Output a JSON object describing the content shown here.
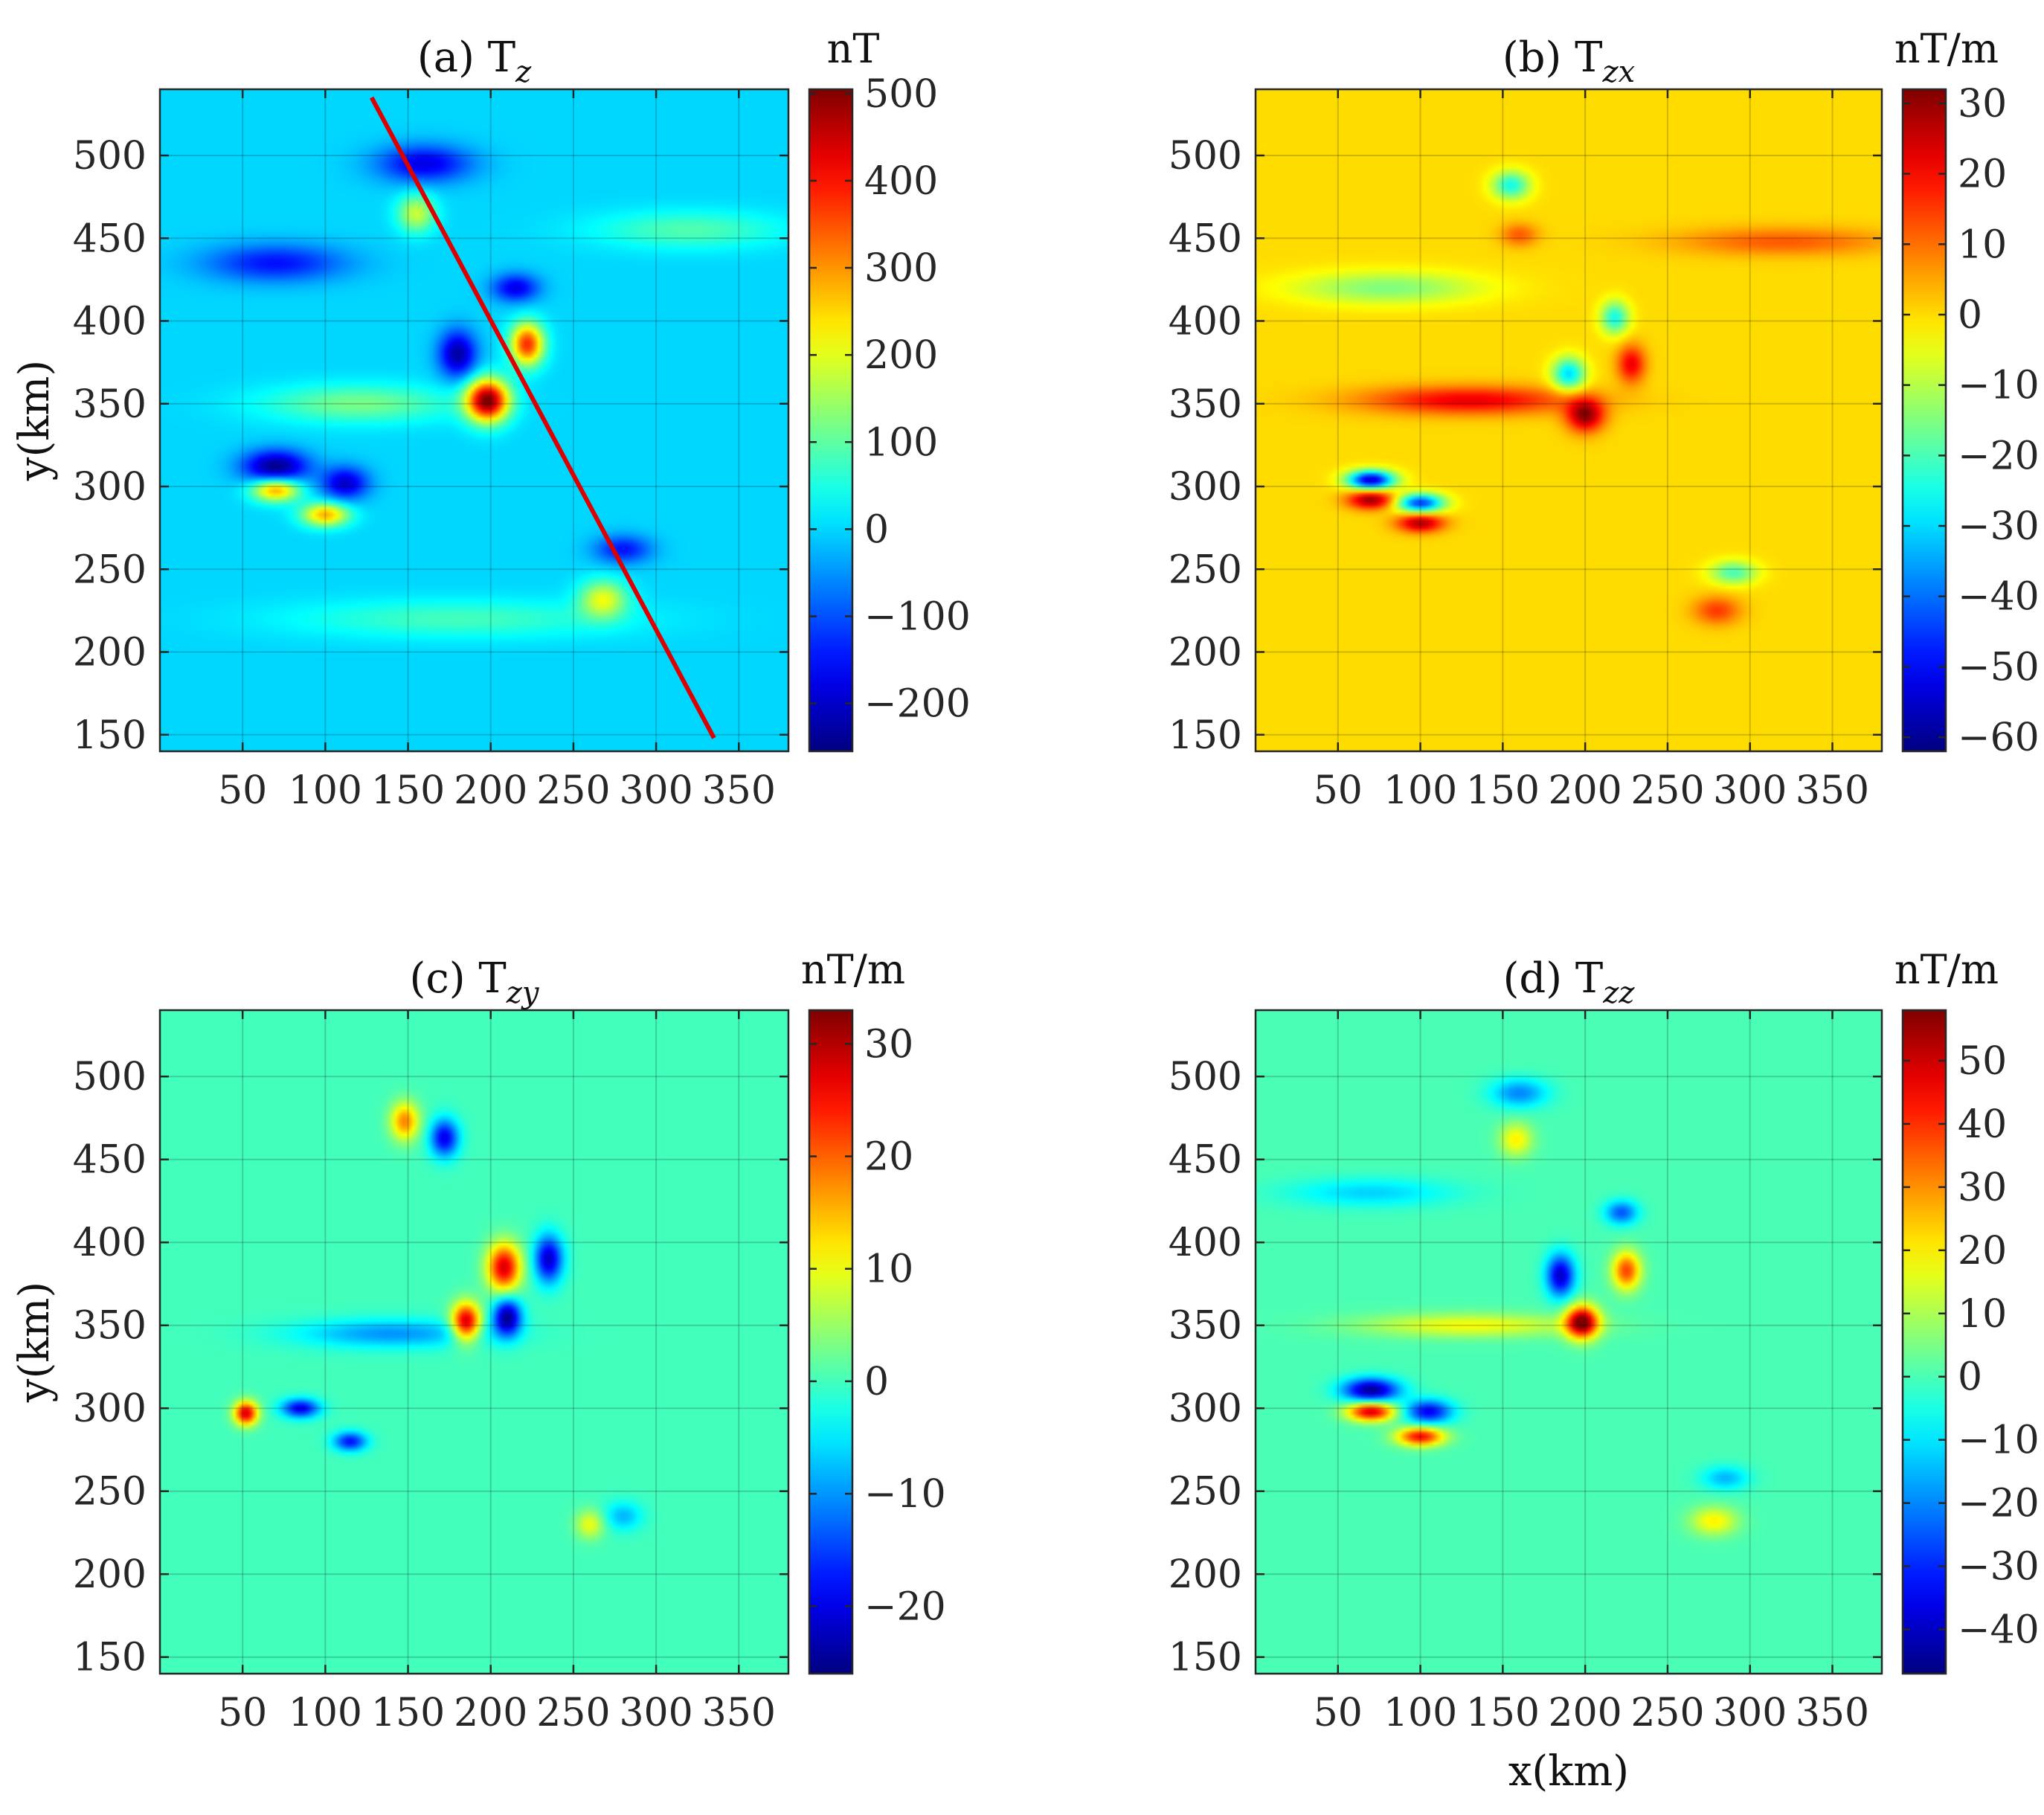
{
  "chart_data": [
    {
      "type": "heatmap",
      "title": "(a) T",
      "title_sub": "z",
      "colorbar_unit": "nT",
      "colorbar_ticks": [
        -200,
        -100,
        0,
        100,
        200,
        300,
        400,
        500
      ],
      "colorbar_range": [
        -255,
        505
      ],
      "xlim": [
        0,
        380
      ],
      "ylim": [
        140,
        540
      ],
      "x_ticks": [
        50,
        100,
        150,
        200,
        250,
        300,
        350
      ],
      "y_ticks": [
        150,
        200,
        250,
        300,
        350,
        400,
        450,
        500
      ],
      "xlabel": "",
      "ylabel": "y(km)",
      "grid": true,
      "background_value": 0,
      "anomalies": [
        {
          "x": 198,
          "y": 352,
          "sx": 9,
          "sy": 9,
          "value": 500
        },
        {
          "x": 222,
          "y": 386,
          "sx": 7,
          "sy": 9,
          "value": 380
        },
        {
          "x": 180,
          "y": 380,
          "sx": 8,
          "sy": 10,
          "value": -230
        },
        {
          "x": 70,
          "y": 298,
          "sx": 10,
          "sy": 5,
          "value": 300
        },
        {
          "x": 100,
          "y": 283,
          "sx": 10,
          "sy": 5,
          "value": 280
        },
        {
          "x": 70,
          "y": 312,
          "sx": 14,
          "sy": 7,
          "value": -250
        },
        {
          "x": 112,
          "y": 302,
          "sx": 10,
          "sy": 7,
          "value": -200
        },
        {
          "x": 268,
          "y": 232,
          "sx": 10,
          "sy": 8,
          "value": 200
        },
        {
          "x": 280,
          "y": 262,
          "sx": 12,
          "sy": 6,
          "value": -150
        },
        {
          "x": 155,
          "y": 465,
          "sx": 8,
          "sy": 8,
          "value": 180
        },
        {
          "x": 160,
          "y": 495,
          "sx": 20,
          "sy": 8,
          "value": -180
        },
        {
          "x": 70,
          "y": 435,
          "sx": 30,
          "sy": 8,
          "value": -150
        },
        {
          "x": 215,
          "y": 420,
          "sx": 10,
          "sy": 6,
          "value": -180
        },
        {
          "x": 120,
          "y": 350,
          "sx": 40,
          "sy": 8,
          "value": 120
        },
        {
          "x": 320,
          "y": 455,
          "sx": 40,
          "sy": 8,
          "value": 90
        },
        {
          "x": 180,
          "y": 220,
          "sx": 70,
          "sy": 8,
          "value": 80
        }
      ],
      "profile_line": {
        "x": [
          128,
          335
        ],
        "y": [
          535,
          148
        ],
        "color": "#dd0000"
      }
    },
    {
      "type": "heatmap",
      "title": "(b) T",
      "title_sub": "zx",
      "colorbar_unit": "nT/m",
      "colorbar_ticks": [
        -60,
        -50,
        -40,
        -30,
        -20,
        -10,
        0,
        10,
        20,
        30
      ],
      "colorbar_range": [
        -62,
        32
      ],
      "xlim": [
        0,
        380
      ],
      "ylim": [
        140,
        540
      ],
      "x_ticks": [
        50,
        100,
        150,
        200,
        250,
        300,
        350
      ],
      "y_ticks": [
        150,
        200,
        250,
        300,
        350,
        400,
        450,
        500
      ],
      "xlabel": "",
      "ylabel": "",
      "grid": true,
      "background_value": 0,
      "anomalies": [
        {
          "x": 200,
          "y": 343,
          "sx": 8,
          "sy": 7,
          "value": 30
        },
        {
          "x": 190,
          "y": 368,
          "sx": 7,
          "sy": 7,
          "value": -30
        },
        {
          "x": 228,
          "y": 374,
          "sx": 6,
          "sy": 8,
          "value": 22
        },
        {
          "x": 218,
          "y": 402,
          "sx": 6,
          "sy": 7,
          "value": -25
        },
        {
          "x": 70,
          "y": 292,
          "sx": 10,
          "sy": 4,
          "value": 30
        },
        {
          "x": 100,
          "y": 278,
          "sx": 10,
          "sy": 4,
          "value": 28
        },
        {
          "x": 70,
          "y": 304,
          "sx": 10,
          "sy": 4,
          "value": -55
        },
        {
          "x": 100,
          "y": 290,
          "sx": 10,
          "sy": 4,
          "value": -45
        },
        {
          "x": 280,
          "y": 225,
          "sx": 10,
          "sy": 6,
          "value": 15
        },
        {
          "x": 290,
          "y": 248,
          "sx": 10,
          "sy": 5,
          "value": -20
        },
        {
          "x": 155,
          "y": 482,
          "sx": 8,
          "sy": 6,
          "value": -25
        },
        {
          "x": 160,
          "y": 452,
          "sx": 8,
          "sy": 5,
          "value": 12
        },
        {
          "x": 130,
          "y": 352,
          "sx": 45,
          "sy": 6,
          "value": 22
        },
        {
          "x": 320,
          "y": 448,
          "sx": 45,
          "sy": 6,
          "value": 12
        },
        {
          "x": 80,
          "y": 420,
          "sx": 40,
          "sy": 7,
          "value": -15
        }
      ]
    },
    {
      "type": "heatmap",
      "title": "(c) T",
      "title_sub": "zy",
      "colorbar_unit": "nT/m",
      "colorbar_ticks": [
        -20,
        -10,
        0,
        10,
        20,
        30
      ],
      "colorbar_range": [
        -26,
        33
      ],
      "xlim": [
        0,
        380
      ],
      "ylim": [
        140,
        540
      ],
      "x_ticks": [
        50,
        100,
        150,
        200,
        250,
        300,
        350
      ],
      "y_ticks": [
        150,
        200,
        250,
        300,
        350,
        400,
        450,
        500
      ],
      "xlabel": "",
      "ylabel": "y(km)",
      "grid": true,
      "background_value": 0,
      "anomalies": [
        {
          "x": 185,
          "y": 352,
          "sx": 6,
          "sy": 8,
          "value": 30
        },
        {
          "x": 208,
          "y": 385,
          "sx": 7,
          "sy": 10,
          "value": 28
        },
        {
          "x": 210,
          "y": 355,
          "sx": 6,
          "sy": 8,
          "value": -25
        },
        {
          "x": 235,
          "y": 390,
          "sx": 6,
          "sy": 10,
          "value": -22
        },
        {
          "x": 52,
          "y": 297,
          "sx": 5,
          "sy": 5,
          "value": 28
        },
        {
          "x": 85,
          "y": 300,
          "sx": 8,
          "sy": 4,
          "value": -20
        },
        {
          "x": 115,
          "y": 280,
          "sx": 7,
          "sy": 4,
          "value": -18
        },
        {
          "x": 148,
          "y": 473,
          "sx": 6,
          "sy": 8,
          "value": 18
        },
        {
          "x": 172,
          "y": 463,
          "sx": 6,
          "sy": 8,
          "value": -20
        },
        {
          "x": 260,
          "y": 230,
          "sx": 6,
          "sy": 6,
          "value": 10
        },
        {
          "x": 280,
          "y": 235,
          "sx": 8,
          "sy": 6,
          "value": -8
        },
        {
          "x": 140,
          "y": 345,
          "sx": 40,
          "sy": 6,
          "value": -10
        }
      ]
    },
    {
      "type": "heatmap",
      "title": "(d) T",
      "title_sub": "zz",
      "colorbar_unit": "nT/m",
      "colorbar_ticks": [
        -40,
        -30,
        -20,
        -10,
        0,
        10,
        20,
        30,
        40,
        50
      ],
      "colorbar_range": [
        -47,
        58
      ],
      "xlim": [
        0,
        380
      ],
      "ylim": [
        140,
        540
      ],
      "x_ticks": [
        50,
        100,
        150,
        200,
        250,
        300,
        350
      ],
      "y_ticks": [
        150,
        200,
        250,
        300,
        350,
        400,
        450,
        500
      ],
      "xlabel": "x(km)",
      "ylabel": "",
      "grid": true,
      "background_value": 0,
      "anomalies": [
        {
          "x": 198,
          "y": 352,
          "sx": 7,
          "sy": 7,
          "value": 58
        },
        {
          "x": 225,
          "y": 383,
          "sx": 6,
          "sy": 8,
          "value": 38
        },
        {
          "x": 185,
          "y": 380,
          "sx": 6,
          "sy": 9,
          "value": -40
        },
        {
          "x": 222,
          "y": 418,
          "sx": 7,
          "sy": 5,
          "value": -25
        },
        {
          "x": 70,
          "y": 298,
          "sx": 10,
          "sy": 4,
          "value": 50
        },
        {
          "x": 100,
          "y": 283,
          "sx": 10,
          "sy": 4,
          "value": 45
        },
        {
          "x": 70,
          "y": 311,
          "sx": 12,
          "sy": 5,
          "value": -45
        },
        {
          "x": 105,
          "y": 298,
          "sx": 10,
          "sy": 5,
          "value": -35
        },
        {
          "x": 278,
          "y": 232,
          "sx": 10,
          "sy": 6,
          "value": 20
        },
        {
          "x": 285,
          "y": 258,
          "sx": 10,
          "sy": 5,
          "value": -15
        },
        {
          "x": 158,
          "y": 462,
          "sx": 7,
          "sy": 7,
          "value": 20
        },
        {
          "x": 160,
          "y": 490,
          "sx": 12,
          "sy": 6,
          "value": -20
        },
        {
          "x": 130,
          "y": 350,
          "sx": 45,
          "sy": 5,
          "value": 18
        },
        {
          "x": 70,
          "y": 430,
          "sx": 35,
          "sy": 6,
          "value": -12
        }
      ]
    }
  ]
}
